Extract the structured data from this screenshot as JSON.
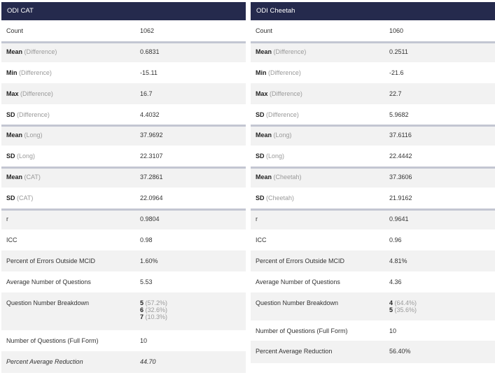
{
  "left": {
    "title": "ODI CAT",
    "rows": [
      {
        "label": "Count",
        "value": "1062"
      },
      {
        "label": "Mean",
        "muted": "(Difference)",
        "value": "0.6831"
      },
      {
        "label": "Min",
        "muted": "(Difference)",
        "value": "-15.11"
      },
      {
        "label": "Max",
        "muted": "(Difference)",
        "value": "16.7"
      },
      {
        "label": "SD",
        "muted": "(Difference)",
        "value": "4.4032"
      },
      {
        "label": "Mean",
        "muted": "(Long)",
        "value": "37.9692"
      },
      {
        "label": "SD",
        "muted": "(Long)",
        "value": "22.3107"
      },
      {
        "label": "Mean",
        "muted": "(CAT)",
        "value": "37.2861"
      },
      {
        "label": "SD",
        "muted": "(CAT)",
        "value": "22.0964"
      },
      {
        "label": "r",
        "value": "0.9804"
      },
      {
        "label": "ICC",
        "value": "0.98"
      },
      {
        "label": "Percent of  Errors Outside MCID",
        "value": "1.60%"
      },
      {
        "label": "Average Number of Questions",
        "value": "5.53"
      },
      {
        "label": "Question Number Breakdown",
        "value": [
          {
            "n": "5",
            "pct": "(57.2%)"
          },
          {
            "n": "6",
            "pct": "(32.6%)"
          },
          {
            "n": "7",
            "pct": "(10.3%)"
          }
        ]
      },
      {
        "label": "Number of Questions (Full Form)",
        "value": "10"
      },
      {
        "label": "Percent Average Reduction",
        "value": "44.70"
      }
    ]
  },
  "right": {
    "title": "ODI Cheetah",
    "rows": [
      {
        "label": "Count",
        "value": "1060"
      },
      {
        "label": "Mean",
        "muted": "(Difference)",
        "value": "0.2511"
      },
      {
        "label": "Min",
        "muted": "(Difference)",
        "value": "-21.6"
      },
      {
        "label": "Max",
        "muted": "(Difference)",
        "value": "22.7"
      },
      {
        "label": "SD",
        "muted": "(Difference)",
        "value": "5.9682"
      },
      {
        "label": "Mean",
        "muted": "(Long)",
        "value": "37.6116"
      },
      {
        "label": "SD",
        "muted": "(Long)",
        "value": "22.4442"
      },
      {
        "label": "Mean",
        "muted": "(Cheetah)",
        "value": "37.3606"
      },
      {
        "label": "SD",
        "muted": "(Cheetah)",
        "value": "21.9162"
      },
      {
        "label": "r",
        "value": "0.9641"
      },
      {
        "label": "ICC",
        "value": "0.96"
      },
      {
        "label": "Percent of Errors Outside MCID",
        "value": "4.81%"
      },
      {
        "label": "Average Number of Questions",
        "value": "4.36"
      },
      {
        "label": "Question Number Breakdown",
        "value": [
          {
            "n": "4",
            "pct": "(64.4%)"
          },
          {
            "n": "5",
            "pct": "(35.6%)"
          }
        ]
      },
      {
        "label": "Number of Questions (Full Form)",
        "value": "10"
      },
      {
        "label": "Percent Average Reduction",
        "value": "56.40%"
      }
    ]
  }
}
